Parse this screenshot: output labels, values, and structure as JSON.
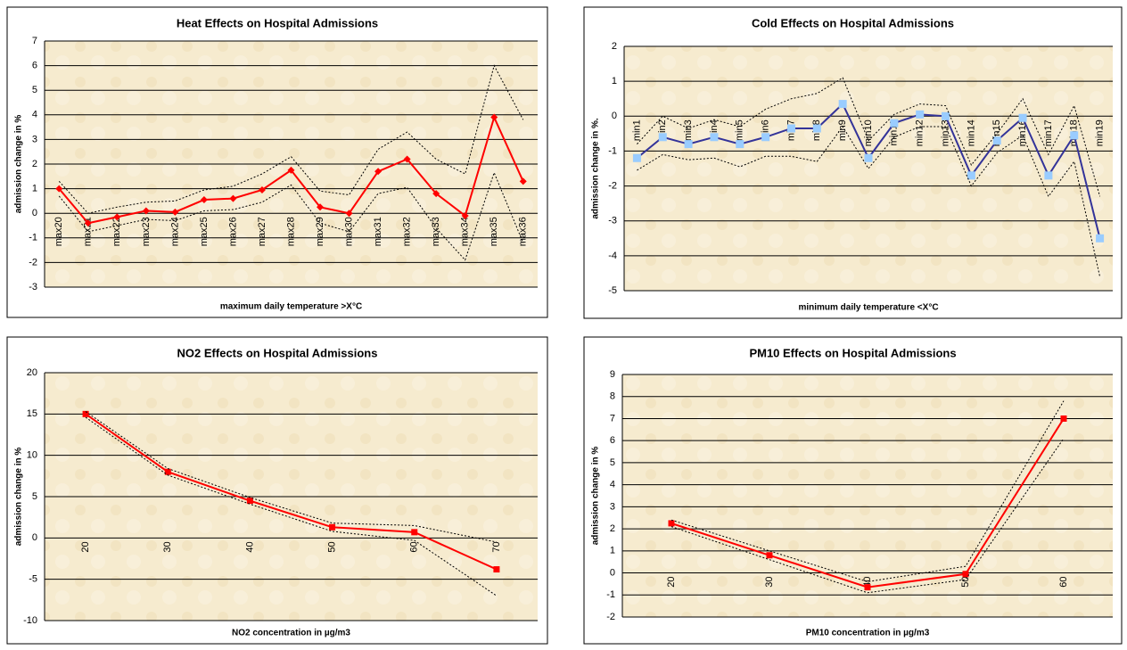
{
  "chart_data": [
    {
      "type": "line",
      "title": "Heat Effects on Hospital Admissions",
      "xlabel": "maximum daily temperature >X°C",
      "ylabel": "admission change in %",
      "categories": [
        "max20",
        "max21",
        "max22",
        "max23",
        "max24",
        "max25",
        "max26",
        "max27",
        "max28",
        "max29",
        "max30",
        "max31",
        "max32",
        "max33",
        "max34",
        "max35",
        "max36"
      ],
      "ylim": [
        -3,
        7
      ],
      "yticks": [
        -3,
        -2,
        -1,
        0,
        1,
        2,
        3,
        4,
        5,
        6,
        7
      ],
      "grid": true,
      "series": [
        {
          "color": "#ff0000",
          "marker": "diamond",
          "marker_color": "#ff0000",
          "dash": "solid",
          "values": [
            1.0,
            -0.4,
            -0.15,
            0.1,
            0.05,
            0.55,
            0.6,
            0.95,
            1.75,
            0.25,
            0.0,
            1.7,
            2.2,
            0.8,
            -0.1,
            3.9,
            1.3
          ]
        },
        {
          "color": "#000000",
          "marker": "none",
          "dash": "dotted",
          "values": [
            1.3,
            0.0,
            0.25,
            0.45,
            0.5,
            0.95,
            1.1,
            1.6,
            2.3,
            0.9,
            0.75,
            2.6,
            3.3,
            2.2,
            1.6,
            6.0,
            3.8
          ]
        },
        {
          "color": "#000000",
          "marker": "none",
          "dash": "dotted",
          "values": [
            0.7,
            -0.75,
            -0.5,
            -0.25,
            -0.3,
            0.1,
            0.15,
            0.45,
            1.15,
            -0.4,
            -0.75,
            0.8,
            1.05,
            -0.6,
            -1.9,
            1.65,
            -1.2
          ]
        }
      ]
    },
    {
      "type": "line",
      "title": "Cold Effects on Hospital Admissions",
      "xlabel": "minimum daily temperature <X°C",
      "ylabel": "admission change in %.",
      "categories": [
        "min1",
        "min2",
        "min3",
        "min4",
        "min5",
        "min6",
        "min7",
        "min8",
        "min9",
        "min10",
        "min11",
        "min12",
        "min13",
        "min14",
        "min15",
        "min16",
        "min17",
        "min18",
        "min19"
      ],
      "ylim": [
        -5,
        2
      ],
      "yticks": [
        -5,
        -4,
        -3,
        -2,
        -1,
        0,
        1,
        2
      ],
      "grid": true,
      "series": [
        {
          "color": "#333399",
          "marker": "square",
          "marker_color": "#99ccff",
          "dash": "solid",
          "values": [
            -1.2,
            -0.6,
            -0.8,
            -0.6,
            -0.8,
            -0.6,
            -0.35,
            -0.35,
            0.35,
            -1.2,
            -0.2,
            0.05,
            0.0,
            -1.7,
            -0.7,
            -0.05,
            -1.7,
            -0.55,
            -3.5
          ]
        },
        {
          "color": "#000000",
          "marker": "none",
          "dash": "dotted",
          "values": [
            -0.8,
            0.0,
            -0.35,
            -0.1,
            -0.3,
            0.2,
            0.5,
            0.65,
            1.1,
            -0.7,
            0.05,
            0.35,
            0.3,
            -1.4,
            -0.5,
            0.5,
            -1.1,
            0.3,
            -2.3
          ]
        },
        {
          "color": "#000000",
          "marker": "none",
          "dash": "dotted",
          "values": [
            -1.55,
            -1.1,
            -1.25,
            -1.2,
            -1.45,
            -1.15,
            -1.15,
            -1.3,
            -0.3,
            -1.5,
            -0.6,
            -0.3,
            -0.3,
            -2.0,
            -1.05,
            -0.55,
            -2.3,
            -1.3,
            -4.6
          ]
        }
      ]
    },
    {
      "type": "line",
      "title": "NO2 Effects on Hospital Admissions",
      "xlabel": "NO2 concentration in µg/m3",
      "ylabel": "admission change in %",
      "categories": [
        "20",
        "30",
        "40",
        "50",
        "60",
        "70"
      ],
      "ylim": [
        -10,
        20
      ],
      "yticks": [
        -10,
        -5,
        0,
        5,
        10,
        15,
        20
      ],
      "grid": true,
      "series": [
        {
          "color": "#ff0000",
          "marker": "square",
          "marker_color": "#ff0000",
          "dash": "solid",
          "values": [
            15,
            8,
            4.5,
            1.3,
            0.7,
            -3.8
          ]
        },
        {
          "color": "#000000",
          "marker": "none",
          "dash": "dotted",
          "values": [
            15.3,
            8.4,
            4.9,
            1.8,
            1.5,
            -0.5
          ]
        },
        {
          "color": "#000000",
          "marker": "none",
          "dash": "dotted",
          "values": [
            14.6,
            7.6,
            4.1,
            0.8,
            -0.3,
            -7.0
          ]
        }
      ]
    },
    {
      "type": "line",
      "title": "PM10 Effects on Hospital Admissions",
      "xlabel": "PM10 concentration in µg/m3",
      "ylabel": "admission change in %",
      "categories": [
        "20",
        "30",
        "40",
        "50",
        "60"
      ],
      "ylim": [
        -2,
        9
      ],
      "yticks": [
        -2,
        -1,
        0,
        1,
        2,
        3,
        4,
        5,
        6,
        7,
        8,
        9
      ],
      "grid": true,
      "series": [
        {
          "color": "#ff0000",
          "marker": "square",
          "marker_color": "#ff0000",
          "dash": "solid",
          "values": [
            2.25,
            0.8,
            -0.65,
            -0.05,
            7.0
          ]
        },
        {
          "color": "#000000",
          "marker": "none",
          "dash": "dotted",
          "values": [
            2.4,
            1.0,
            -0.4,
            0.3,
            7.8
          ]
        },
        {
          "color": "#000000",
          "marker": "none",
          "dash": "dotted",
          "values": [
            2.1,
            0.6,
            -0.9,
            -0.3,
            6.1
          ]
        }
      ]
    }
  ]
}
